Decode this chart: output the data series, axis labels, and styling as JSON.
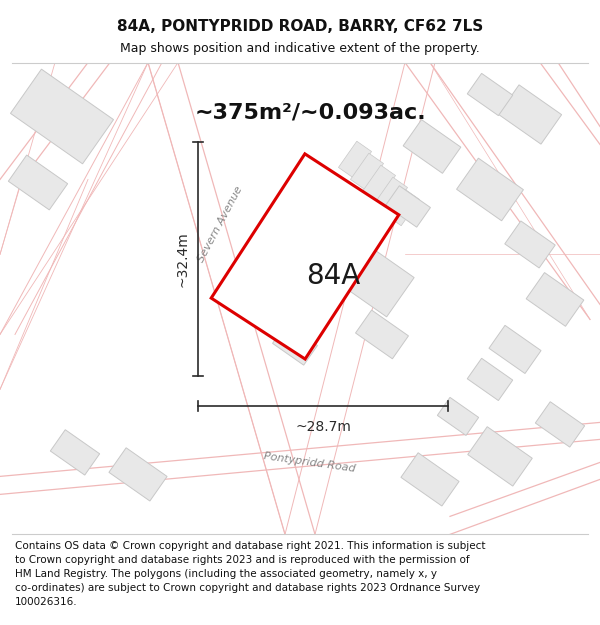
{
  "title": "84A, PONTYPRIDD ROAD, BARRY, CF62 7LS",
  "subtitle": "Map shows position and indicative extent of the property.",
  "footer_lines": [
    "Contains OS data © Crown copyright and database right 2021. This information is subject",
    "to Crown copyright and database rights 2023 and is reproduced with the permission of",
    "HM Land Registry. The polygons (including the associated geometry, namely x, y",
    "co-ordinates) are subject to Crown copyright and database rights 2023 Ordnance Survey",
    "100026316."
  ],
  "area_label": "~375m²/~0.093ac.",
  "plot_label": "84A",
  "width_label": "~28.7m",
  "height_label": "~32.4m",
  "street_severn": "Severn Avenue",
  "street_ponty": "Pontypridd Road",
  "map_bg": "#f9f8f8",
  "road_line_color": "#f0b8b8",
  "building_fill": "#e8e8e8",
  "building_edge": "#c8c8c8",
  "parcel_line_color": "#f0b8b8",
  "plot_edge": "#dd0000",
  "plot_fill": "#ffffff",
  "dim_color": "#2a2a2a",
  "street_color": "#888888",
  "text_color": "#111111",
  "divider_color": "#cccccc",
  "title_fs": 11,
  "subtitle_fs": 9,
  "area_fs": 16,
  "plot_label_fs": 20,
  "dim_fs": 10,
  "street_fs": 8,
  "footer_fs": 7.5
}
